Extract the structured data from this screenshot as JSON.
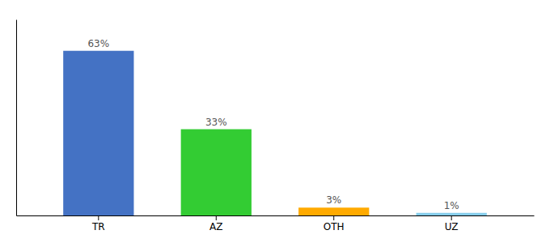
{
  "chart_data": {
    "type": "bar",
    "categories": [
      "TR",
      "AZ",
      "OTH",
      "UZ"
    ],
    "values": [
      63,
      33,
      3,
      1
    ],
    "value_labels": [
      "63%",
      "33%",
      "3%",
      "1%"
    ],
    "colors": [
      "#4472c4",
      "#33cc33",
      "#ffaa00",
      "#87ceeb"
    ],
    "ylim": [
      0,
      75
    ],
    "data_labels": true,
    "tick_labels": "x",
    "grid": false
  }
}
